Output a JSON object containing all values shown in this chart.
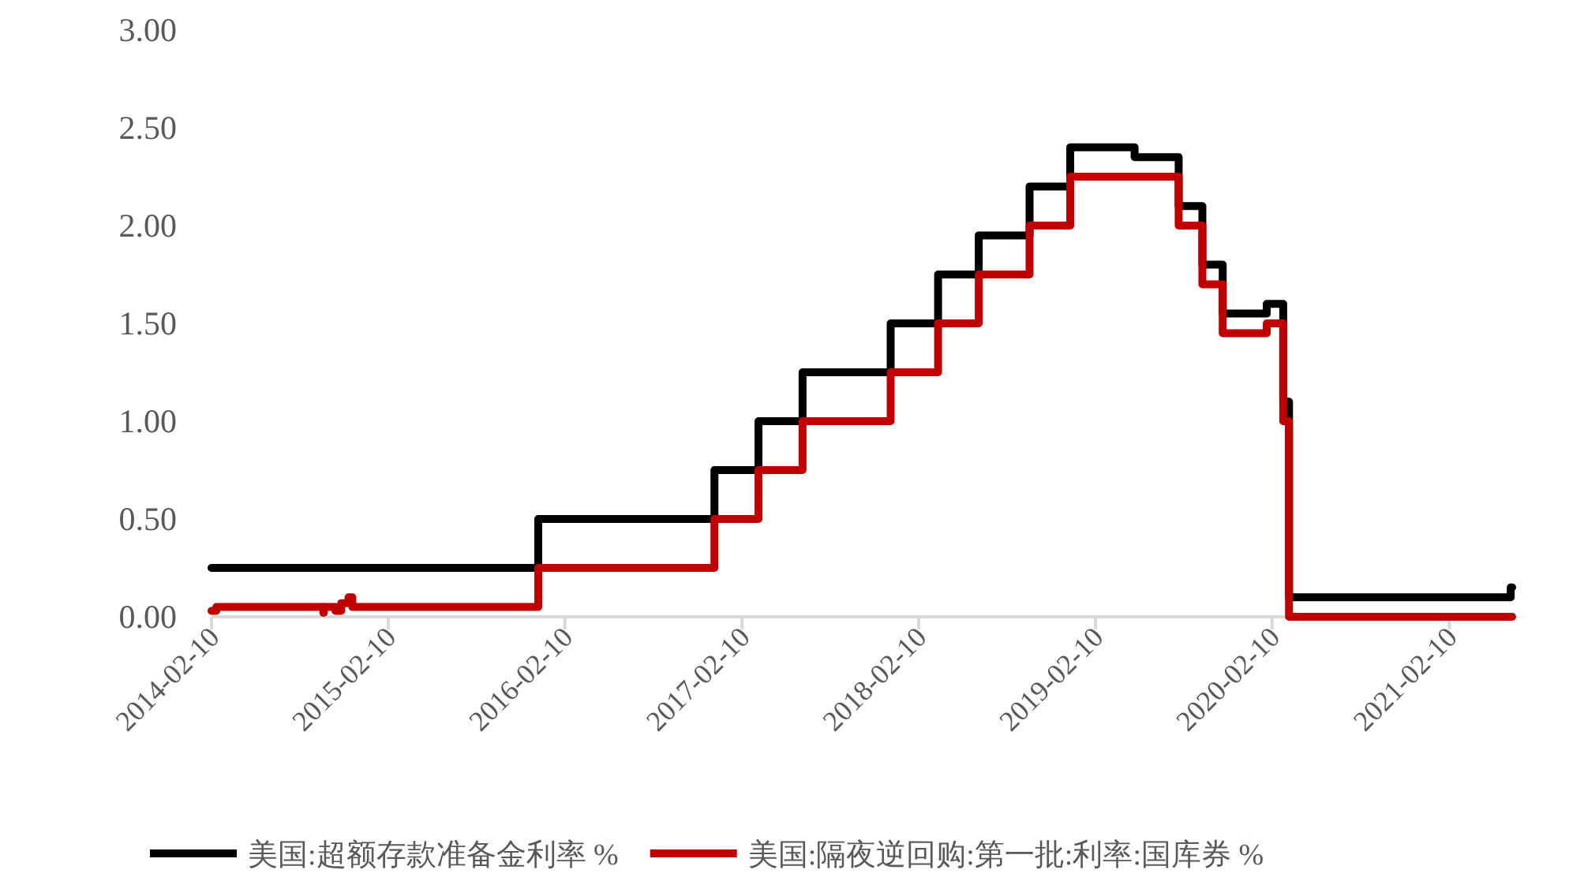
{
  "chart_data": {
    "type": "step",
    "xlim": [
      "2014-02-10",
      "2021-06-20"
    ],
    "ylim": [
      0,
      3
    ],
    "xticks": [
      "2014-02-10",
      "2015-02-10",
      "2016-02-10",
      "2017-02-10",
      "2018-02-10",
      "2019-02-10",
      "2020-02-10",
      "2021-02-10"
    ],
    "yticks": [
      {
        "value": 0,
        "label": "0.00"
      },
      {
        "value": 0.5,
        "label": "0.50"
      },
      {
        "value": 1,
        "label": "1.00"
      },
      {
        "value": 1.5,
        "label": "1.50"
      },
      {
        "value": 2,
        "label": "2.00"
      },
      {
        "value": 2.5,
        "label": "2.50"
      },
      {
        "value": 3,
        "label": "3.00"
      }
    ],
    "legend": "bottom",
    "series": [
      {
        "name": "美国:超额存款准备金利率 %",
        "color": "#000000",
        "x": [
          "2014-02-10",
          "2015-12-17",
          "2016-12-15",
          "2017-03-16",
          "2017-06-15",
          "2017-12-14",
          "2018-03-22",
          "2018-06-14",
          "2018-09-27",
          "2018-12-20",
          "2019-05-02",
          "2019-08-01",
          "2019-09-19",
          "2019-10-31",
          "2020-01-30",
          "2020-03-04",
          "2020-03-16",
          "2021-06-17",
          "2021-06-20"
        ],
        "values": [
          0.25,
          0.5,
          0.75,
          1.0,
          1.25,
          1.5,
          1.75,
          1.95,
          2.2,
          2.4,
          2.35,
          2.1,
          1.8,
          1.55,
          1.6,
          1.1,
          0.1,
          0.15,
          0.15
        ]
      },
      {
        "name": "美国:隔夜逆回购:第一批:利率:国库券 %",
        "color": "#c00000",
        "x": [
          "2014-02-10",
          "2014-02-20",
          "2014-09-29",
          "2014-09-30",
          "2014-10-24",
          "2014-11-05",
          "2014-11-20",
          "2014-11-28",
          "2015-12-17",
          "2016-12-15",
          "2017-03-16",
          "2017-06-15",
          "2017-12-14",
          "2018-03-22",
          "2018-06-14",
          "2018-09-27",
          "2018-12-20",
          "2019-08-01",
          "2019-09-19",
          "2019-10-31",
          "2020-01-30",
          "2020-03-04",
          "2020-03-16",
          "2021-06-20"
        ],
        "values": [
          0.03,
          0.05,
          0.02,
          0.05,
          0.03,
          0.07,
          0.1,
          0.05,
          0.25,
          0.5,
          0.75,
          1.0,
          1.25,
          1.5,
          1.75,
          2.0,
          2.25,
          2.0,
          1.7,
          1.45,
          1.5,
          1.0,
          0.0,
          0.0
        ]
      }
    ]
  }
}
